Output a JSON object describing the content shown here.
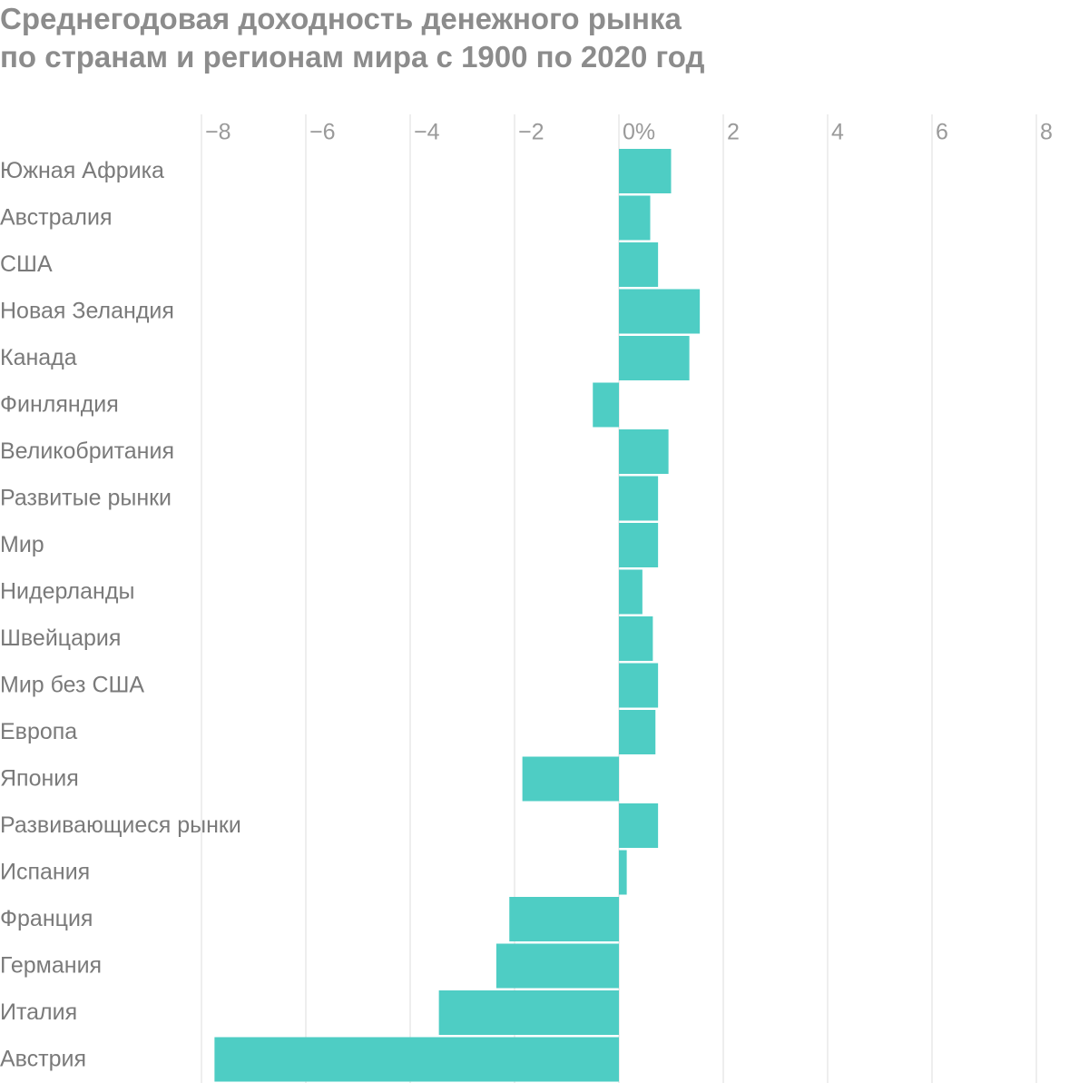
{
  "title": {
    "line1": "Среднегодовая доходность денежного рынка",
    "line2": "по странам и регионам мира с 1900 по 2020 год"
  },
  "colors": {
    "bar": "#4ecdc4",
    "grid": "#e3e3e3",
    "tick_text": "#9a9a9a",
    "label_text": "#7a7a7a",
    "title_text": "#8c8c8c"
  },
  "chart_data": {
    "type": "bar",
    "orientation": "horizontal",
    "categories": [
      "Южная Африка",
      "Австралия",
      "США",
      "Новая Зеландия",
      "Канада",
      "Финляндия",
      "Великобритания",
      "Развитые рынки",
      "Мир",
      "Нидерланды",
      "Швейцария",
      "Мир без США",
      "Европа",
      "Япония",
      "Развивающиеся рынки",
      "Испания",
      "Франция",
      "Германия",
      "Италия",
      "Австрия"
    ],
    "values": [
      1.0,
      0.6,
      0.75,
      1.55,
      1.35,
      -0.5,
      0.95,
      0.75,
      0.75,
      0.45,
      0.65,
      0.75,
      0.7,
      -1.85,
      0.75,
      0.15,
      -2.1,
      -2.35,
      -3.45,
      -7.75
    ],
    "xlim": [
      -8,
      8
    ],
    "tick_values": [
      -8,
      -6,
      -4,
      -2,
      0,
      2,
      4,
      6,
      8
    ],
    "tick_labels": [
      "−8",
      "−6",
      "−4",
      "−2",
      "0%",
      "2",
      "4",
      "6",
      "8"
    ],
    "grid": true,
    "legend": "none",
    "title": "Среднегодовая доходность денежного рынка по странам и регионам мира с 1900 по 2020 год"
  }
}
